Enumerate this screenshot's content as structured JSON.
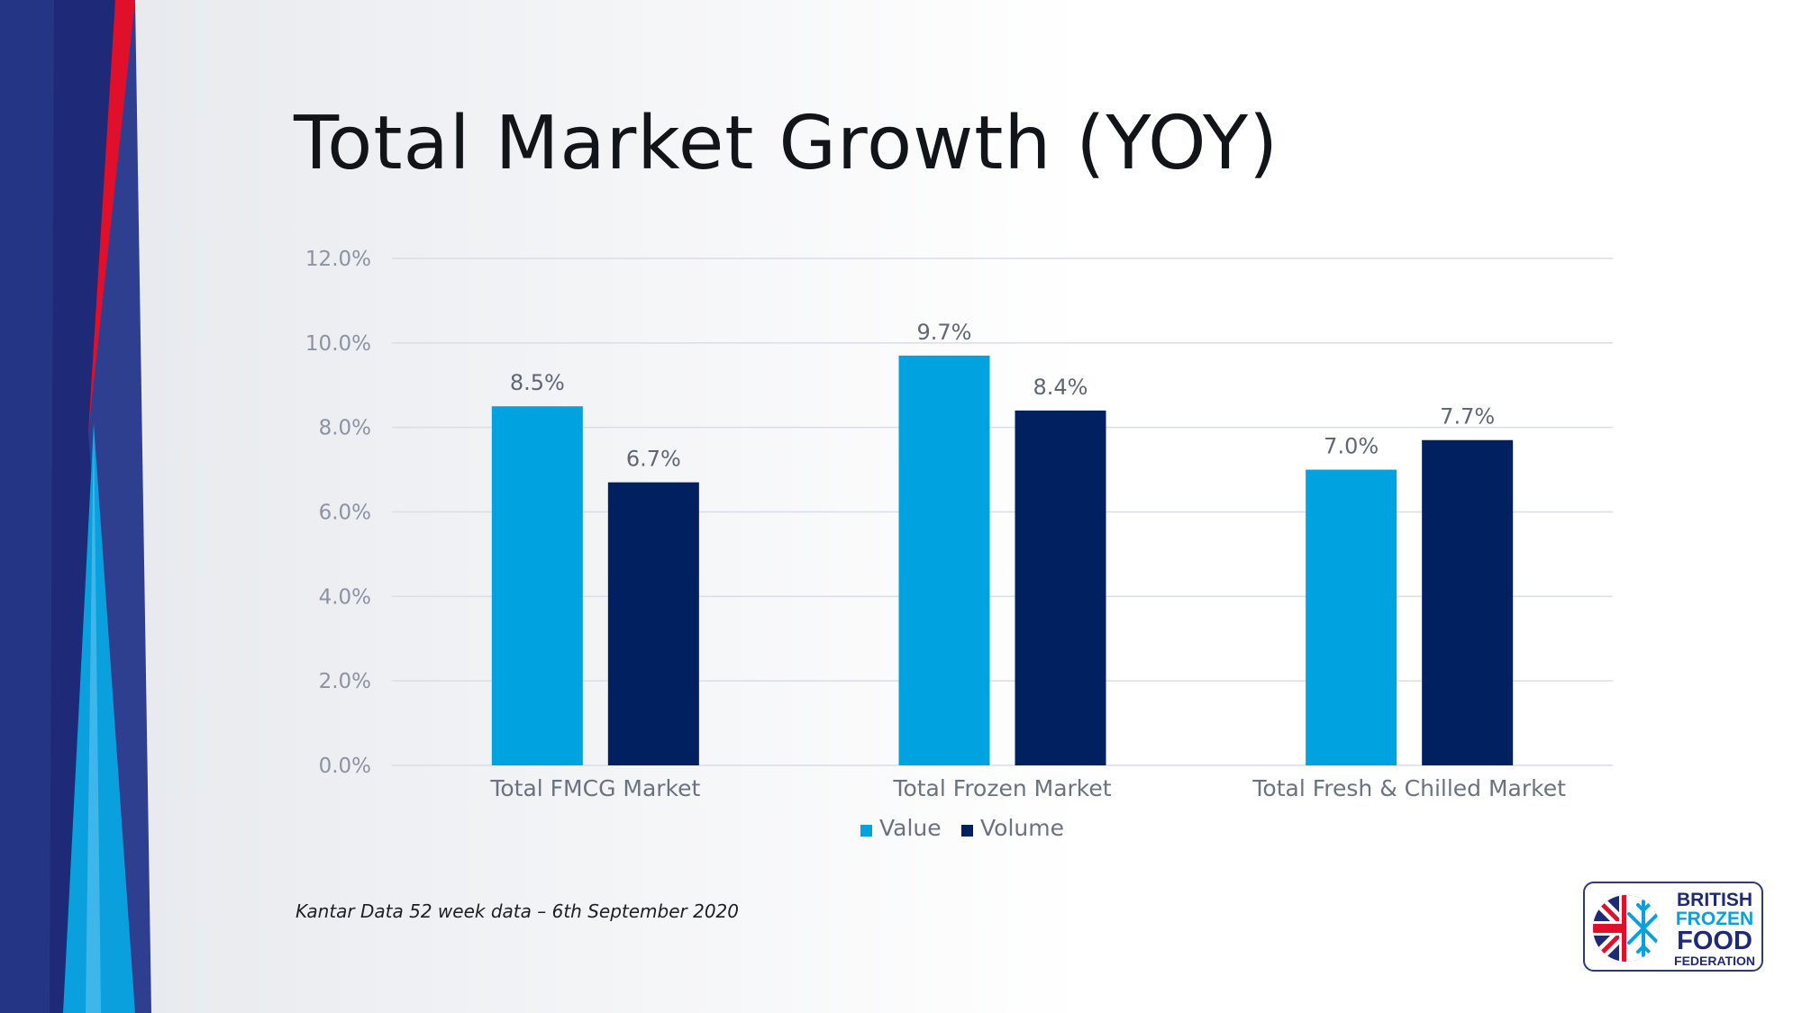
{
  "title": "Total Market Growth (YOY)",
  "source_note": "Kantar Data 52 week data – 6th September 2020",
  "logo": {
    "line1": "BRITISH",
    "line2": "FROZEN",
    "line3": "FOOD",
    "line4": "FEDERATION"
  },
  "colors": {
    "value": "#00a3e0",
    "volume": "#002060",
    "gridline": "#d9dde5",
    "accent_red": "#e0102a",
    "accent_navy": "#1e2a78"
  },
  "chart_data": {
    "type": "bar",
    "categories": [
      "Total FMCG Market",
      "Total Frozen Market",
      "Total Fresh & Chilled Market"
    ],
    "series": [
      {
        "name": "Value",
        "values": [
          8.5,
          9.7,
          7.0
        ],
        "labels": [
          "8.5%",
          "9.7%",
          "7.0%"
        ],
        "color": "#00a3e0"
      },
      {
        "name": "Volume",
        "values": [
          6.7,
          8.4,
          7.7
        ],
        "labels": [
          "6.7%",
          "8.4%",
          "7.7%"
        ],
        "color": "#002060"
      }
    ],
    "yticks": [
      "0.0%",
      "2.0%",
      "4.0%",
      "6.0%",
      "8.0%",
      "10.0%",
      "12.0%"
    ],
    "ylim": [
      0,
      12
    ],
    "grid": true,
    "legend": "bottom-center"
  }
}
